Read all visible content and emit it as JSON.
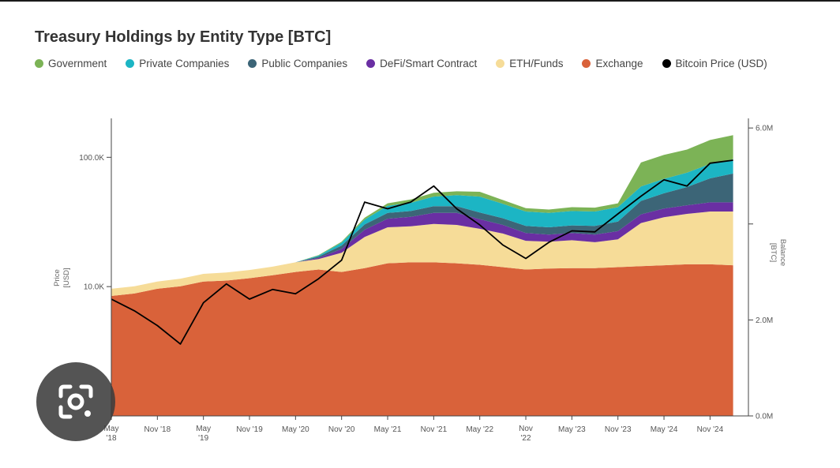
{
  "chart_data": {
    "type": "area",
    "title": "Treasury Holdings by Entity Type [BTC]",
    "legend": [
      {
        "name": "Government",
        "color": "#7cb356"
      },
      {
        "name": "Private Companies",
        "color": "#1cb5c4"
      },
      {
        "name": "Public Companies",
        "color": "#3c6577"
      },
      {
        "name": "DeFi/Smart Contract",
        "color": "#6a2fa3"
      },
      {
        "name": "ETH/Funds",
        "color": "#f6dc98"
      },
      {
        "name": "Exchange",
        "color": "#d9623a"
      },
      {
        "name": "Bitcoin Price (USD)",
        "color": "#000000"
      }
    ],
    "y_left": {
      "label": "Price [USD]",
      "scale": "log",
      "range": [
        1000,
        200000
      ],
      "ticks": [
        "10.0K",
        "100.0K"
      ]
    },
    "y_right": {
      "label": "Balance [BTC]",
      "range": [
        0,
        6200000
      ],
      "ticks": [
        "0.0M",
        "2.0M",
        "6.0M"
      ]
    },
    "x_ticks": [
      "May '18",
      "Nov '18",
      "May '19",
      "Nov '19",
      "May '20",
      "Nov '20",
      "May '21",
      "Nov '21",
      "May '22",
      "Nov '22",
      "May '23",
      "Nov '23",
      "May '24",
      "Nov '24"
    ],
    "x": [
      "2018-05",
      "2018-08",
      "2018-11",
      "2019-02",
      "2019-05",
      "2019-08",
      "2019-11",
      "2020-02",
      "2020-05",
      "2020-08",
      "2020-11",
      "2021-02",
      "2021-05",
      "2021-08",
      "2021-11",
      "2022-02",
      "2022-05",
      "2022-08",
      "2022-11",
      "2023-02",
      "2023-05",
      "2023-08",
      "2023-11",
      "2024-02",
      "2024-05",
      "2024-08",
      "2024-11",
      "2025-02"
    ],
    "series": [
      {
        "name": "Exchange",
        "values": [
          2500000,
          2550000,
          2650000,
          2700000,
          2800000,
          2820000,
          2870000,
          2930000,
          3000000,
          3050000,
          3000000,
          3080000,
          3180000,
          3200000,
          3200000,
          3180000,
          3150000,
          3100000,
          3050000,
          3070000,
          3080000,
          3080000,
          3100000,
          3120000,
          3140000,
          3160000,
          3160000,
          3140000
        ]
      },
      {
        "name": "ETH/Funds",
        "values": [
          150000,
          150000,
          150000,
          160000,
          160000,
          170000,
          170000,
          180000,
          200000,
          220000,
          400000,
          650000,
          750000,
          750000,
          800000,
          800000,
          750000,
          700000,
          600000,
          560000,
          580000,
          540000,
          580000,
          900000,
          1000000,
          1050000,
          1100000,
          1120000
        ]
      },
      {
        "name": "DeFi/Smart Contract",
        "values": [
          0,
          0,
          0,
          0,
          0,
          0,
          0,
          0,
          0,
          20000,
          80000,
          150000,
          180000,
          200000,
          230000,
          250000,
          200000,
          180000,
          160000,
          150000,
          150000,
          160000,
          170000,
          180000,
          180000,
          180000,
          190000,
          190000
        ]
      },
      {
        "name": "Public Companies",
        "values": [
          0,
          0,
          0,
          0,
          0,
          0,
          0,
          0,
          0,
          30000,
          70000,
          110000,
          120000,
          120000,
          140000,
          140000,
          140000,
          140000,
          150000,
          150000,
          160000,
          180000,
          200000,
          280000,
          320000,
          380000,
          500000,
          600000
        ]
      },
      {
        "name": "Private Companies",
        "values": [
          0,
          0,
          0,
          0,
          0,
          0,
          0,
          0,
          0,
          20000,
          60000,
          100000,
          150000,
          170000,
          200000,
          230000,
          330000,
          300000,
          300000,
          300000,
          300000,
          300000,
          300000,
          300000,
          300000,
          300000,
          300000,
          300000
        ]
      },
      {
        "name": "Government",
        "values": [
          0,
          0,
          0,
          0,
          0,
          0,
          0,
          0,
          0,
          10000,
          20000,
          40000,
          50000,
          70000,
          80000,
          80000,
          100000,
          80000,
          70000,
          70000,
          80000,
          80000,
          80000,
          500000,
          500000,
          480000,
          500000,
          500000
        ]
      },
      {
        "name": "Bitcoin Price (USD)",
        "axis": "left",
        "values": [
          8000,
          6500,
          5000,
          3600,
          7500,
          10500,
          8000,
          9500,
          8800,
          11500,
          16000,
          45000,
          40000,
          45000,
          60000,
          40000,
          30000,
          21000,
          16500,
          22000,
          27000,
          26500,
          36500,
          50000,
          67000,
          60000,
          90000,
          95000
        ]
      }
    ]
  }
}
